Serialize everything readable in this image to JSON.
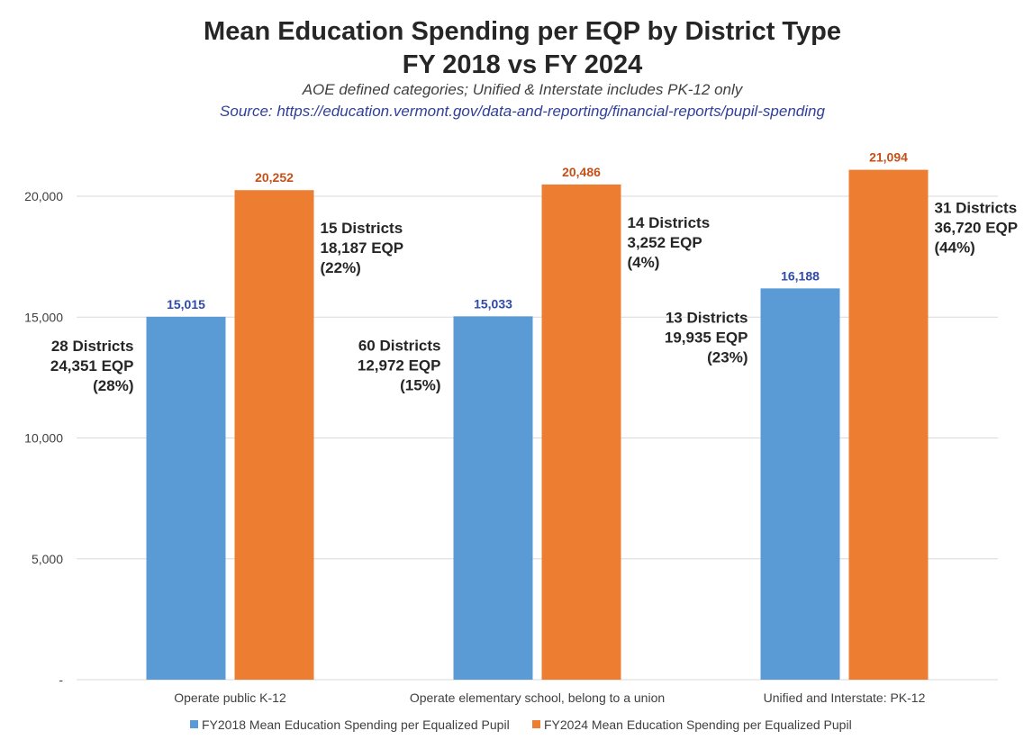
{
  "chart_data": {
    "type": "bar",
    "title": "Mean Education Spending per EQP by District Type",
    "title_line2": "FY 2018 vs FY 2024",
    "subtitle": "AOE defined categories; Unified & Interstate includes PK-12 only",
    "source": "Source: https://education.vermont.gov/data-and-reporting/financial-reports/pupil-spending",
    "categories": [
      "Operate public K-12",
      "Operate elementary school, belong to a union",
      "Unified and Interstate: PK-12"
    ],
    "series": [
      {
        "name": "FY2018 Mean Education Spending per Equalized Pupil",
        "color": "#5b9bd5",
        "values": [
          15015,
          15033,
          16188
        ],
        "labels": [
          "15,015",
          "15,033",
          "16,188"
        ]
      },
      {
        "name": "FY2024 Mean Education Spending per Equalized Pupil",
        "color": "#ed7d31",
        "values": [
          20252,
          20486,
          21094
        ],
        "labels": [
          "20,252",
          "20,486",
          "21,094"
        ]
      }
    ],
    "ylim": [
      0,
      20000
    ],
    "yticks": [
      0,
      5000,
      10000,
      15000,
      20000
    ],
    "ytick_labels": [
      "-",
      "5,000",
      "10,000",
      "15,000",
      "20,000"
    ],
    "grid": true,
    "legend_position": "bottom",
    "annotations": [
      {
        "series": 0,
        "category": 0,
        "lines": [
          "28 Districts",
          "24,351 EQP",
          "(28%)"
        ]
      },
      {
        "series": 1,
        "category": 0,
        "lines": [
          "15 Districts",
          "18,187 EQP",
          "(22%)"
        ]
      },
      {
        "series": 0,
        "category": 1,
        "lines": [
          "60 Districts",
          "12,972 EQP",
          "(15%)"
        ]
      },
      {
        "series": 1,
        "category": 1,
        "lines": [
          "14 Districts",
          "3,252 EQP",
          "(4%)"
        ]
      },
      {
        "series": 0,
        "category": 2,
        "lines": [
          "13 Districts",
          "19,935 EQP",
          "(23%)"
        ]
      },
      {
        "series": 1,
        "category": 2,
        "lines": [
          "31 Districts",
          "36,720 EQP",
          "(44%)"
        ]
      }
    ]
  }
}
